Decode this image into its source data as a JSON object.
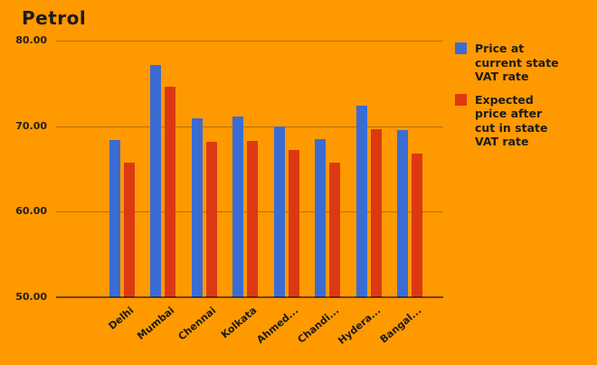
{
  "chart_data": {
    "type": "bar",
    "title": "Petrol",
    "categories": [
      "Delhi",
      "Mumbai",
      "Chennai",
      "Kolkata",
      "Ahmed...",
      "Chandi...",
      "Hydera...",
      "Bangal..."
    ],
    "series": [
      {
        "name": "Price at current state VAT rate",
        "legend_label": "Price at\ncurrent state\nVAT rate",
        "color": "#3B6CD3",
        "values": [
          68.4,
          77.2,
          70.9,
          71.1,
          70.0,
          68.5,
          72.4,
          69.5
        ]
      },
      {
        "name": "Expected price after cut in state VAT rate",
        "legend_label": "Expected\nprice after\ncut in state\nVAT rate",
        "color": "#DC3912",
        "values": [
          65.7,
          74.6,
          68.2,
          68.3,
          67.2,
          65.7,
          69.6,
          66.8
        ]
      }
    ],
    "y_axis": {
      "tick_labels": [
        "80.00",
        "70.00",
        "60.00",
        "50.00"
      ],
      "tick_values": [
        80,
        70,
        60,
        50
      ],
      "min": 50,
      "max": 80
    },
    "grid": true,
    "legend_position": "right",
    "background_color": "#FF9900",
    "text_color": "#1b1b1b"
  }
}
